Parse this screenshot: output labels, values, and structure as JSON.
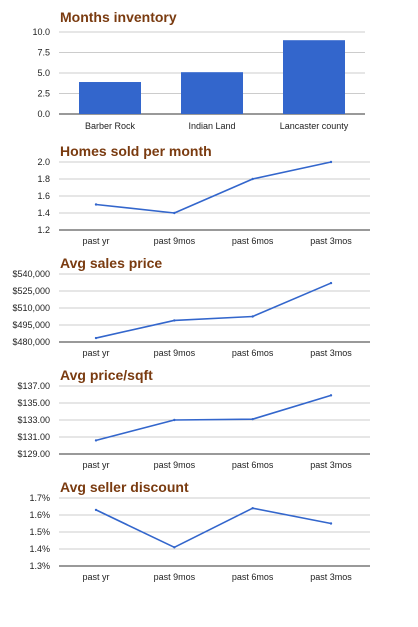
{
  "charts": [
    {
      "title": "Months inventory",
      "chart_type": "bar",
      "categories": [
        "Barber Rock",
        "Indian Land",
        "Lancaster county"
      ],
      "values": [
        3.9,
        5.1,
        9.0
      ],
      "y_ticks": [
        "10.0",
        "7.5",
        "5.0",
        "2.5",
        "0.0"
      ],
      "ylim": [
        0,
        10
      ],
      "color": "#3366cc"
    },
    {
      "title": "Homes sold per month",
      "chart_type": "line",
      "categories": [
        "past yr",
        "past 9mos",
        "past 6mos",
        "past 3mos"
      ],
      "values": [
        1.5,
        1.4,
        1.8,
        2.0
      ],
      "y_ticks": [
        "2.0",
        "1.8",
        "1.6",
        "1.4",
        "1.2"
      ],
      "ylim": [
        1.2,
        2.0
      ],
      "color": "#3366cc"
    },
    {
      "title": "Avg sales price",
      "chart_type": "line",
      "categories": [
        "past yr",
        "past 9mos",
        "past 6mos",
        "past 3mos"
      ],
      "values": [
        483500,
        499000,
        502500,
        532000
      ],
      "y_ticks": [
        "$540,000",
        "$525,000",
        "$510,000",
        "$495,000",
        "$480,000"
      ],
      "ylim": [
        480000,
        540000
      ],
      "color": "#3366cc"
    },
    {
      "title": "Avg price/sqft",
      "chart_type": "line",
      "categories": [
        "past yr",
        "past 9mos",
        "past 6mos",
        "past 3mos"
      ],
      "values": [
        130.6,
        133.0,
        133.1,
        135.9
      ],
      "y_ticks": [
        "$137.00",
        "$135.00",
        "$133.00",
        "$131.00",
        "$129.00"
      ],
      "ylim": [
        129,
        137
      ],
      "color": "#3366cc"
    },
    {
      "title": "Avg seller discount",
      "chart_type": "line",
      "categories": [
        "past yr",
        "past 9mos",
        "past 6mos",
        "past 3mos"
      ],
      "values": [
        1.63,
        1.41,
        1.64,
        1.55
      ],
      "y_ticks": [
        "1.7%",
        "1.6%",
        "1.5%",
        "1.4%",
        "1.3%"
      ],
      "ylim": [
        1.3,
        1.7
      ],
      "color": "#3366cc"
    }
  ],
  "chart_data": [
    {
      "type": "bar",
      "title": "Months inventory",
      "categories": [
        "Barber Rock",
        "Indian Land",
        "Lancaster county"
      ],
      "values": [
        3.9,
        5.1,
        9.0
      ],
      "ylim": [
        0,
        10
      ],
      "grid": true
    },
    {
      "type": "line",
      "title": "Homes sold per month",
      "categories": [
        "past yr",
        "past 9mos",
        "past 6mos",
        "past 3mos"
      ],
      "values": [
        1.5,
        1.4,
        1.8,
        2.0
      ],
      "ylim": [
        1.2,
        2.0
      ],
      "grid": true
    },
    {
      "type": "line",
      "title": "Avg sales price",
      "categories": [
        "past yr",
        "past 9mos",
        "past 6mos",
        "past 3mos"
      ],
      "values": [
        483500,
        499000,
        502500,
        532000
      ],
      "ylim": [
        480000,
        540000
      ],
      "grid": true
    },
    {
      "type": "line",
      "title": "Avg price/sqft",
      "categories": [
        "past yr",
        "past 9mos",
        "past 6mos",
        "past 3mos"
      ],
      "values": [
        130.6,
        133.0,
        133.1,
        135.9
      ],
      "ylim": [
        129,
        137
      ],
      "grid": true
    },
    {
      "type": "line",
      "title": "Avg seller discount",
      "categories": [
        "past yr",
        "past 9mos",
        "past 6mos",
        "past 3mos"
      ],
      "values": [
        1.63,
        1.41,
        1.64,
        1.55
      ],
      "ylim": [
        1.3,
        1.7
      ],
      "grid": true
    }
  ]
}
